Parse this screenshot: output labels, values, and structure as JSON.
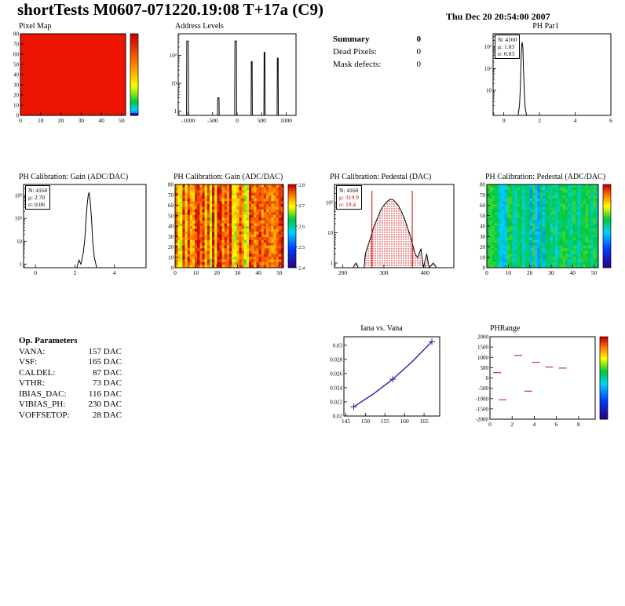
{
  "header": {
    "title": "shortTests M0607-071220.19:08 T+17a (C9)",
    "date": "Thu Dec 20 20:54:00 2007"
  },
  "summary": {
    "title": "Summary",
    "value": "0",
    "rows": [
      {
        "label": "Dead Pixels:",
        "value": "0"
      },
      {
        "label": "Mask defects:",
        "value": "0"
      }
    ]
  },
  "op_parameters": {
    "title": "Op. Parameters",
    "rows": [
      {
        "label": "VANA:",
        "value": "157 DAC"
      },
      {
        "label": "VSF:",
        "value": "165 DAC"
      },
      {
        "label": "CALDEL:",
        "value": "87 DAC"
      },
      {
        "label": "VTHR:",
        "value": "73 DAC"
      },
      {
        "label": "IBIAS_DAC:",
        "value": "116 DAC"
      },
      {
        "label": "VIBIAS_PH:",
        "value": "230 DAC"
      },
      {
        "label": "VOFFSETOP:",
        "value": "28 DAC"
      }
    ]
  },
  "chart_data": [
    {
      "id": "pixel-map",
      "type": "heatmap",
      "title": "Pixel Map",
      "xlim": [
        0,
        52
      ],
      "ylim": [
        0,
        80
      ],
      "xticks": [
        0,
        10,
        20,
        30,
        40,
        50
      ],
      "yticks": [
        0,
        10,
        20,
        30,
        40,
        50,
        60,
        70,
        80
      ],
      "uniform_color": "#ec1300",
      "colorbar": true,
      "colorbar_skew": 0.3,
      "colorbar_labels": []
    },
    {
      "id": "address-levels",
      "type": "hist",
      "title": "Address Levels",
      "xlim": [
        -1200,
        1200
      ],
      "xticks": [
        -1000,
        -500,
        0,
        500,
        1000
      ],
      "ylog": true,
      "ylim": [
        0.7,
        600
      ],
      "yticks": [
        1,
        10,
        100
      ],
      "ytick_labels": [
        "1",
        "10",
        "10²"
      ],
      "outline": [
        [
          -1150,
          0.7
        ],
        [
          -1030,
          0.7
        ],
        [
          -1025,
          330
        ],
        [
          -995,
          330
        ],
        [
          -990,
          0.7
        ],
        [
          -400,
          0.7
        ],
        [
          -395,
          3
        ],
        [
          -370,
          3
        ],
        [
          -365,
          0.7
        ],
        [
          -50,
          0.7
        ],
        [
          -45,
          330
        ],
        [
          -15,
          330
        ],
        [
          -10,
          0.7
        ],
        [
          285,
          0.7
        ],
        [
          290,
          60
        ],
        [
          305,
          60
        ],
        [
          310,
          0.7
        ],
        [
          545,
          0.7
        ],
        [
          550,
          130
        ],
        [
          565,
          130
        ],
        [
          570,
          0.7
        ],
        [
          815,
          0.7
        ],
        [
          820,
          80
        ],
        [
          835,
          80
        ],
        [
          840,
          0.7
        ],
        [
          1150,
          0.7
        ]
      ],
      "line_color": "#000000"
    },
    {
      "id": "ph-par1",
      "type": "hist",
      "title": "PH Par1",
      "stats": {
        "n": "N: 4160",
        "mu": "μ: 1.03",
        "sigma": "σ: 0.03"
      },
      "xlim": [
        -0.6,
        6
      ],
      "xticks": [
        0,
        2,
        4,
        6
      ],
      "ylog": true,
      "ylim": [
        0.7,
        4000
      ],
      "yticks": [
        10,
        100,
        1000
      ],
      "ytick_labels": [
        "10",
        "10²",
        "10³"
      ],
      "outline": [
        [
          0.8,
          0.7
        ],
        [
          0.88,
          2
        ],
        [
          0.93,
          15
        ],
        [
          0.97,
          300
        ],
        [
          1.0,
          1200
        ],
        [
          1.03,
          1600
        ],
        [
          1.07,
          900
        ],
        [
          1.1,
          120
        ],
        [
          1.15,
          8
        ],
        [
          1.2,
          1.5
        ],
        [
          1.28,
          0.7
        ]
      ],
      "line_color": "#000000"
    },
    {
      "id": "gain-hist",
      "type": "hist",
      "title": "PH Calibration: Gain (ADC/DAC)",
      "stats": {
        "n": "N: 4160",
        "mu": "μ: 2.70",
        "sigma": "σ: 0.06"
      },
      "xlim": [
        -0.6,
        5.6
      ],
      "xticks": [
        0,
        2,
        4
      ],
      "ylog": true,
      "ylim": [
        0.7,
        3000
      ],
      "yticks": [
        1,
        10,
        100,
        1000
      ],
      "ytick_labels": [
        "1",
        "10",
        "10²",
        "10³"
      ],
      "outline": [
        [
          2.1,
          0.7
        ],
        [
          2.2,
          1.5
        ],
        [
          2.3,
          1
        ],
        [
          2.42,
          3
        ],
        [
          2.5,
          12
        ],
        [
          2.56,
          80
        ],
        [
          2.62,
          400
        ],
        [
          2.68,
          1100
        ],
        [
          2.72,
          1300
        ],
        [
          2.78,
          500
        ],
        [
          2.84,
          90
        ],
        [
          2.9,
          10
        ],
        [
          2.98,
          2
        ],
        [
          3.1,
          0.7
        ]
      ],
      "line_color": "#000000"
    },
    {
      "id": "gain-map",
      "type": "heatmap",
      "title": "PH Calibration: Gain (ADC/DAC)",
      "xlim": [
        0,
        52
      ],
      "ylim": [
        0,
        80
      ],
      "xticks": [
        0,
        10,
        20,
        30,
        40,
        50
      ],
      "yticks": [
        0,
        10,
        20,
        30,
        40,
        50,
        60,
        70,
        80
      ],
      "noise": "warm",
      "palette_range": [
        0.6,
        1.0
      ],
      "noise_bias": 0.4,
      "colorbar": true,
      "colorbar_skew": 1,
      "colorbar_labels": [
        "2.8",
        "2.7",
        "2.6",
        "2.5",
        "2.4"
      ]
    },
    {
      "id": "pedestal-hist",
      "type": "hist",
      "title": "PH Calibration: Pedestal (DAC)",
      "stats": {
        "n": "N: 4160",
        "mu": "μ: 319.9",
        "sigma": "σ: 19.4"
      },
      "xlim": [
        180,
        470
      ],
      "xticks": [
        200,
        300,
        400
      ],
      "ylog": true,
      "ylim": [
        0.7,
        400
      ],
      "yticks": [
        1,
        10,
        100
      ],
      "ytick_labels": [
        "1",
        "10",
        "10²"
      ],
      "outline": [
        [
          225,
          0.7
        ],
        [
          232,
          1
        ],
        [
          238,
          0.7
        ],
        [
          252,
          0.7
        ],
        [
          255,
          2
        ],
        [
          262,
          4
        ],
        [
          268,
          7
        ],
        [
          274,
          14
        ],
        [
          280,
          22
        ],
        [
          286,
          35
        ],
        [
          292,
          55
        ],
        [
          298,
          75
        ],
        [
          304,
          95
        ],
        [
          310,
          115
        ],
        [
          316,
          130
        ],
        [
          322,
          125
        ],
        [
          328,
          105
        ],
        [
          334,
          85
        ],
        [
          340,
          60
        ],
        [
          346,
          40
        ],
        [
          352,
          25
        ],
        [
          358,
          14
        ],
        [
          364,
          8
        ],
        [
          370,
          4
        ],
        [
          376,
          2
        ],
        [
          382,
          1.5
        ],
        [
          390,
          3
        ],
        [
          396,
          0.7
        ],
        [
          404,
          2
        ],
        [
          410,
          0.7
        ],
        [
          420,
          1
        ],
        [
          428,
          0.7
        ]
      ],
      "fill_dots": true,
      "marker_lines": [
        271,
        369
      ],
      "line_color": "#000000"
    },
    {
      "id": "pedestal-map",
      "type": "heatmap",
      "title": "PH Calibration: Pedestal (ADC/DAC)",
      "xlim": [
        0,
        52
      ],
      "ylim": [
        0,
        80
      ],
      "xticks": [
        0,
        10,
        20,
        30,
        40,
        50
      ],
      "yticks": [
        0,
        10,
        20,
        30,
        40,
        50,
        60,
        70,
        80
      ],
      "noise": "cool",
      "palette_range": [
        0.32,
        0.62
      ],
      "noise_bias": 0.6,
      "colorbar": true,
      "colorbar_skew": 1,
      "colorbar_labels": []
    },
    {
      "id": "iana-vana",
      "type": "line",
      "title": "Iana vs. Vana",
      "xlim": [
        144.5,
        169
      ],
      "xticks": [
        145,
        150,
        155,
        160,
        165
      ],
      "ylim": [
        0.02,
        0.0312
      ],
      "yticks": [
        0.02,
        0.022,
        0.024,
        0.026,
        0.028,
        0.03
      ],
      "ytick_labels": [
        "0.02",
        "0.022",
        "0.024",
        "0.026",
        "0.028",
        "0.03"
      ],
      "points": [
        [
          147,
          0.0213
        ],
        [
          152,
          0.0231
        ],
        [
          157,
          0.0252
        ],
        [
          162,
          0.0277
        ],
        [
          167,
          0.0305
        ]
      ],
      "markers": [
        [
          147,
          0.0213
        ],
        [
          157,
          0.0252
        ],
        [
          167,
          0.0305
        ]
      ],
      "line_color": "#2222aa"
    },
    {
      "id": "ph-range",
      "type": "segments",
      "title": "PHRange",
      "xlim": [
        0,
        9.5
      ],
      "xticks": [
        0,
        2,
        4,
        6,
        8
      ],
      "ylim": [
        -2000,
        2000
      ],
      "yticks": [
        -2000,
        -1500,
        -1000,
        -500,
        0,
        500,
        1000,
        1500,
        2000
      ],
      "ytick_labels": [
        "-2000",
        "-1500",
        "-1000",
        "-500",
        "0",
        "500",
        "1000",
        "1500",
        "2000"
      ],
      "segments": [
        [
          2.2,
          2.9,
          1100
        ],
        [
          3.8,
          4.5,
          760
        ],
        [
          5.0,
          5.7,
          530
        ],
        [
          6.2,
          6.9,
          480
        ],
        [
          0.3,
          1.0,
          260
        ],
        [
          3.1,
          3.8,
          -640
        ],
        [
          0.8,
          1.5,
          -1060
        ]
      ],
      "seg_color": "#cc3333",
      "colorbar": true,
      "colorbar_skew": 1,
      "colorbar_labels": []
    }
  ]
}
